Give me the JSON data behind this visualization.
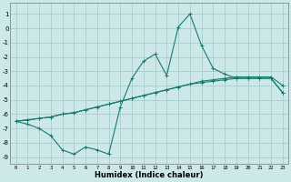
{
  "xlabel": "Humidex (Indice chaleur)",
  "bg_color": "#cce8e8",
  "grid_color": "#aacccc",
  "line_color": "#1a7a6e",
  "xlim": [
    -0.5,
    23.5
  ],
  "ylim": [
    -9.5,
    1.8
  ],
  "xticks": [
    0,
    1,
    2,
    3,
    4,
    5,
    6,
    7,
    8,
    9,
    10,
    11,
    12,
    13,
    14,
    15,
    16,
    17,
    18,
    19,
    20,
    21,
    22,
    23
  ],
  "yticks": [
    1,
    0,
    -1,
    -2,
    -3,
    -4,
    -5,
    -6,
    -7,
    -8,
    -9
  ],
  "line1_x": [
    0,
    1,
    2,
    3,
    4,
    5,
    6,
    7,
    8,
    9,
    10,
    11,
    12,
    13,
    14,
    15,
    16,
    17,
    18,
    19,
    20,
    21,
    22,
    23
  ],
  "line1_y": [
    -6.5,
    -6.4,
    -6.3,
    -6.2,
    -6.0,
    -5.9,
    -5.7,
    -5.5,
    -5.3,
    -5.1,
    -4.9,
    -4.7,
    -4.5,
    -4.3,
    -4.1,
    -3.9,
    -3.8,
    -3.7,
    -3.6,
    -3.5,
    -3.5,
    -3.5,
    -3.5,
    -4.5
  ],
  "line2_x": [
    0,
    1,
    2,
    3,
    4,
    5,
    6,
    7,
    8,
    9,
    10,
    11,
    12,
    13,
    14,
    15,
    16,
    17,
    18,
    19,
    20,
    21,
    22,
    23
  ],
  "line2_y": [
    -6.5,
    -6.4,
    -6.3,
    -6.2,
    -6.0,
    -5.9,
    -5.7,
    -5.5,
    -5.3,
    -5.1,
    -4.9,
    -4.7,
    -4.5,
    -4.3,
    -4.1,
    -3.9,
    -3.7,
    -3.6,
    -3.5,
    -3.4,
    -3.4,
    -3.4,
    -3.4,
    -4.0
  ],
  "line3_x": [
    0,
    1,
    2,
    3,
    4,
    5,
    6,
    7,
    8,
    9,
    10,
    11,
    12,
    13,
    14,
    15,
    16,
    17,
    18,
    19,
    20,
    21,
    22,
    23
  ],
  "line3_y": [
    -6.5,
    -6.7,
    -7.0,
    -7.5,
    -8.5,
    -8.8,
    -8.3,
    -8.5,
    -8.8,
    -5.5,
    -3.5,
    -2.3,
    -1.8,
    -3.3,
    0.1,
    1.0,
    -1.2,
    -2.8,
    -3.2,
    -3.5,
    -3.5,
    -3.5,
    -3.5,
    -4.5
  ]
}
